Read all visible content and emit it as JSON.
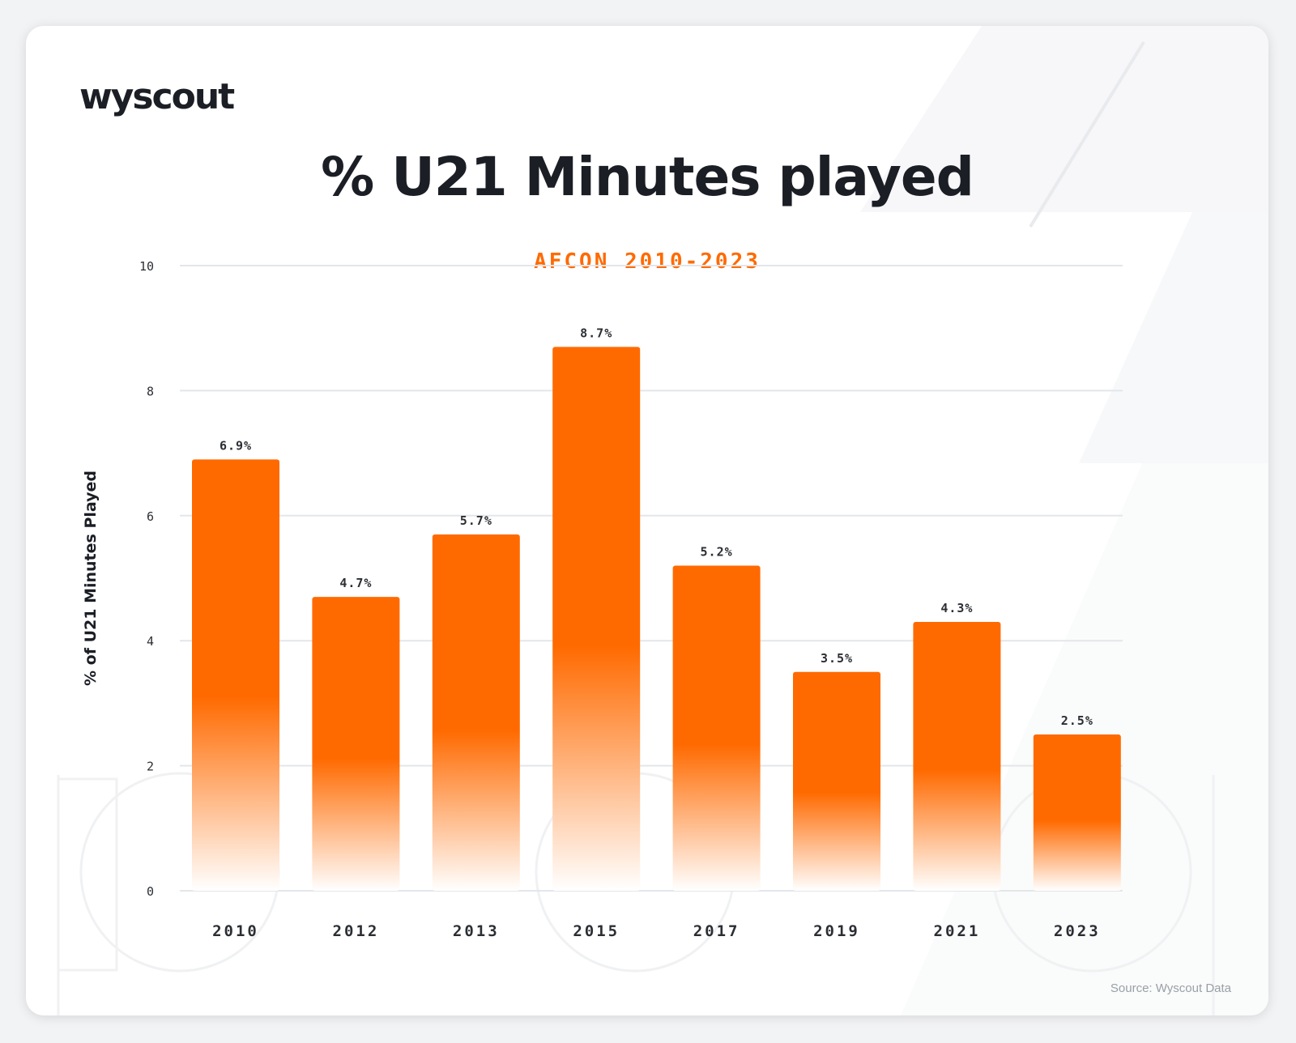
{
  "brand": {
    "logo_text": "wyscout"
  },
  "header": {
    "title": "% U21 Minutes played",
    "subtitle": "AFCON 2010-2023"
  },
  "footer": {
    "source": "Source: Wyscout Data"
  },
  "colors": {
    "bar": "#ff6a00",
    "bar_fade": "#ffffff",
    "text": "#1b1e25",
    "grid": "#e3e6ea",
    "accent": "#ff6a00"
  },
  "chart_data": {
    "type": "bar",
    "title": "% U21 Minutes played",
    "subtitle": "AFCON 2010-2023",
    "xlabel": "",
    "ylabel": "% of U21 Minutes Played",
    "categories": [
      "2010",
      "2012",
      "2013",
      "2015",
      "2017",
      "2019",
      "2021",
      "2023"
    ],
    "values": [
      6.9,
      4.7,
      5.7,
      8.7,
      5.2,
      3.5,
      4.3,
      2.5
    ],
    "data_labels": [
      "6.9%",
      "4.7%",
      "5.7%",
      "8.7%",
      "5.2%",
      "3.5%",
      "4.3%",
      "2.5%"
    ],
    "ylim": [
      0,
      10
    ],
    "yticks": [
      0,
      2,
      4,
      6,
      8,
      10
    ],
    "grid": true,
    "legend": "none"
  }
}
